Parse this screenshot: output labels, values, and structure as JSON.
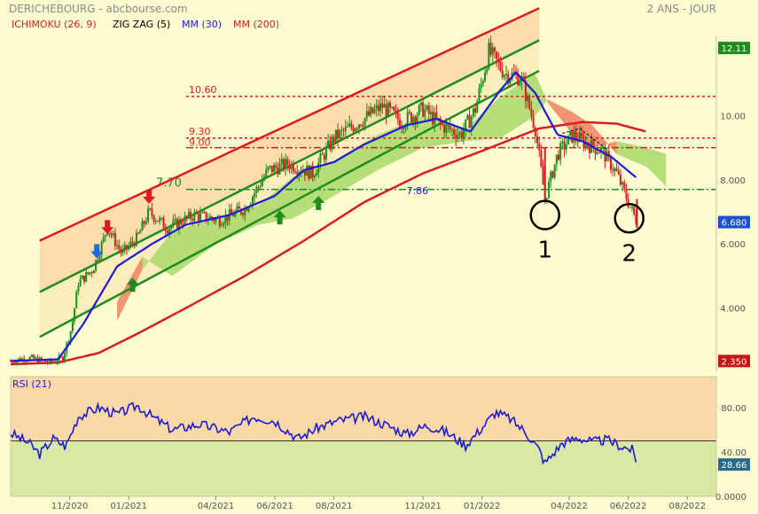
{
  "header": {
    "title": "DERICHEBOURG - abcbourse.com",
    "period": "2 ANS - JOUR",
    "legend": [
      {
        "label": "ICHIMOKU (26, 9)",
        "color": "#d81e1e"
      },
      {
        "label": "ZIG ZAG (5)",
        "color": "#000000"
      },
      {
        "label": "MM (30)",
        "color": "#1a1ad8"
      },
      {
        "label": "MM (200)",
        "color": "#d81e1e"
      }
    ]
  },
  "colors": {
    "background": "#fdfbd0",
    "rsi_overbought_band": "#fbd9a6",
    "rsi_oversold_band": "#d9e9a4",
    "candle_up": "#1a8f1a",
    "candle_down": "#d81e1e",
    "mm30": "#1a1ad8",
    "mm200": "#d81e1e",
    "channel_upper": "#e01a1a",
    "channel_lower": "#1f8c1f",
    "cloud_bull": "#a8d86a",
    "cloud_bear": "#f08060",
    "price_tag_green": "#1f8c1f",
    "price_tag_blue": "#1a4fd8",
    "price_tag_red": "#c81414",
    "price_tag_teal": "#2a6a8a"
  },
  "chart_data": [
    {
      "type": "candlestick",
      "title": "DERICHEBOURG",
      "y_axis": {
        "ticks": [
          "4.000",
          "6.000",
          "8.000",
          "10.00"
        ],
        "ylim": [
          2.0,
          12.5
        ]
      },
      "x_axis": {
        "ticks": [
          "11/2020",
          "01/2021",
          "04/2021",
          "06/2021",
          "08/2021",
          "11/2021",
          "01/2022",
          "04/2022",
          "06/2022",
          "08/2022"
        ],
        "xlim": [
          "2020-09-01",
          "2022-08-31"
        ]
      },
      "price_tags": [
        {
          "value": 12.11,
          "label": "12.11",
          "color": "#1f8c1f"
        },
        {
          "value": 6.68,
          "label": "6.680",
          "color": "#1a4fd8"
        },
        {
          "value": 2.35,
          "label": "2.350",
          "color": "#c81414"
        }
      ],
      "horizontal_levels": [
        {
          "value": 10.6,
          "label": "10.60",
          "style": "dotted",
          "color": "#d81e1e"
        },
        {
          "value": 9.3,
          "label": "9.30",
          "style": "dotted",
          "color": "#d81e1e"
        },
        {
          "value": 9.0,
          "label": "9.00",
          "style": "dashdot",
          "color": "#d81e1e"
        },
        {
          "value": 7.7,
          "label": "7.70",
          "style": "dashdot",
          "color": "#1f8c1f"
        }
      ],
      "annotations": [
        {
          "label": "7.86",
          "date": "2021-10-15",
          "value": 7.55,
          "color": "#1a1ad8"
        },
        {
          "label": "1",
          "date": "2022-03-07",
          "value": 6.9,
          "type": "circle"
        },
        {
          "label": "2",
          "date": "2022-06-02",
          "value": 6.8,
          "type": "circle"
        }
      ],
      "arrows": [
        {
          "date": "2020-12-10",
          "value": 6.3,
          "direction": "down",
          "color": "#e01a1a"
        },
        {
          "date": "2021-01-22",
          "value": 7.25,
          "direction": "down",
          "color": "#e01a1a"
        },
        {
          "date": "2020-11-29",
          "value": 5.55,
          "direction": "down",
          "color": "#1a6ae0"
        },
        {
          "date": "2021-01-05",
          "value": 4.95,
          "direction": "up",
          "color": "#1f8c1f"
        },
        {
          "date": "2021-06-06",
          "value": 7.05,
          "direction": "up",
          "color": "#1f8c1f"
        },
        {
          "date": "2021-07-16",
          "value": 7.5,
          "direction": "up",
          "color": "#1f8c1f"
        }
      ],
      "channel": {
        "upper": [
          {
            "date": "2020-10-01",
            "value": 6.1
          },
          {
            "date": "2022-03-01",
            "value": 13.35
          }
        ],
        "middle": [
          {
            "date": "2020-10-01",
            "value": 4.5
          },
          {
            "date": "2022-03-01",
            "value": 12.35
          }
        ],
        "lower": [
          {
            "date": "2020-10-01",
            "value": 3.1
          },
          {
            "date": "2022-03-01",
            "value": 11.4
          }
        ]
      },
      "price_anchors": [
        {
          "date": "2020-09-01",
          "value": 2.35
        },
        {
          "date": "2020-09-20",
          "value": 2.45
        },
        {
          "date": "2020-10-10",
          "value": 2.3
        },
        {
          "date": "2020-10-25",
          "value": 2.45
        },
        {
          "date": "2020-11-03",
          "value": 3.4
        },
        {
          "date": "2020-11-10",
          "value": 4.8
        },
        {
          "date": "2020-11-25",
          "value": 5.2
        },
        {
          "date": "2020-12-10",
          "value": 6.5
        },
        {
          "date": "2020-12-25",
          "value": 5.7
        },
        {
          "date": "2021-01-10",
          "value": 6.2
        },
        {
          "date": "2021-01-22",
          "value": 7.0
        },
        {
          "date": "2021-02-10",
          "value": 6.5
        },
        {
          "date": "2021-03-10",
          "value": 6.9
        },
        {
          "date": "2021-04-05",
          "value": 6.75
        },
        {
          "date": "2021-05-01",
          "value": 7.1
        },
        {
          "date": "2021-05-25",
          "value": 8.3
        },
        {
          "date": "2021-06-15",
          "value": 8.5
        },
        {
          "date": "2021-07-10",
          "value": 8.2
        },
        {
          "date": "2021-08-01",
          "value": 9.3
        },
        {
          "date": "2021-09-01",
          "value": 9.9
        },
        {
          "date": "2021-09-20",
          "value": 10.3
        },
        {
          "date": "2021-10-10",
          "value": 9.8
        },
        {
          "date": "2021-11-01",
          "value": 10.2
        },
        {
          "date": "2021-11-20",
          "value": 9.7
        },
        {
          "date": "2021-12-10",
          "value": 9.4
        },
        {
          "date": "2021-12-25",
          "value": 10.2
        },
        {
          "date": "2022-01-08",
          "value": 12.0
        },
        {
          "date": "2022-01-25",
          "value": 11.3
        },
        {
          "date": "2022-02-10",
          "value": 11.2
        },
        {
          "date": "2022-02-25",
          "value": 9.6
        },
        {
          "date": "2022-03-07",
          "value": 7.4
        },
        {
          "date": "2022-03-20",
          "value": 8.8
        },
        {
          "date": "2022-04-05",
          "value": 9.4
        },
        {
          "date": "2022-04-20",
          "value": 9.1
        },
        {
          "date": "2022-05-05",
          "value": 8.9
        },
        {
          "date": "2022-05-20",
          "value": 8.2
        },
        {
          "date": "2022-06-01",
          "value": 7.3
        },
        {
          "date": "2022-06-10",
          "value": 6.68
        }
      ],
      "mm30_anchors": [
        {
          "date": "2020-09-01",
          "value": 2.35
        },
        {
          "date": "2020-10-20",
          "value": 2.4
        },
        {
          "date": "2020-11-15",
          "value": 3.5
        },
        {
          "date": "2020-12-20",
          "value": 5.3
        },
        {
          "date": "2021-01-25",
          "value": 6.0
        },
        {
          "date": "2021-03-01",
          "value": 6.6
        },
        {
          "date": "2021-04-15",
          "value": 6.9
        },
        {
          "date": "2021-06-01",
          "value": 7.5
        },
        {
          "date": "2021-07-01",
          "value": 8.3
        },
        {
          "date": "2021-08-01",
          "value": 8.55
        },
        {
          "date": "2021-09-01",
          "value": 9.1
        },
        {
          "date": "2021-10-15",
          "value": 9.7
        },
        {
          "date": "2021-11-15",
          "value": 9.9
        },
        {
          "date": "2021-12-20",
          "value": 9.5
        },
        {
          "date": "2022-01-20",
          "value": 10.8
        },
        {
          "date": "2022-02-05",
          "value": 11.35
        },
        {
          "date": "2022-02-25",
          "value": 10.7
        },
        {
          "date": "2022-03-20",
          "value": 9.4
        },
        {
          "date": "2022-04-15",
          "value": 9.2
        },
        {
          "date": "2022-05-15",
          "value": 8.7
        },
        {
          "date": "2022-06-10",
          "value": 8.05
        }
      ],
      "mm200_anchors": [
        {
          "date": "2020-09-01",
          "value": 2.25
        },
        {
          "date": "2020-10-20",
          "value": 2.3
        },
        {
          "date": "2020-12-01",
          "value": 2.6
        },
        {
          "date": "2021-01-10",
          "value": 3.2
        },
        {
          "date": "2021-03-01",
          "value": 4.0
        },
        {
          "date": "2021-05-01",
          "value": 5.0
        },
        {
          "date": "2021-07-01",
          "value": 6.1
        },
        {
          "date": "2021-09-01",
          "value": 7.3
        },
        {
          "date": "2021-11-01",
          "value": 8.2
        },
        {
          "date": "2022-01-01",
          "value": 8.9
        },
        {
          "date": "2022-03-01",
          "value": 9.6
        },
        {
          "date": "2022-04-15",
          "value": 9.8
        },
        {
          "date": "2022-05-20",
          "value": 9.75
        },
        {
          "date": "2022-06-20",
          "value": 9.5
        }
      ],
      "cloud": [
        {
          "date": "2020-12-20",
          "a": 3.6,
          "b": 4.2
        },
        {
          "date": "2021-01-15",
          "a": 5.2,
          "b": 5.6
        },
        {
          "date": "2021-02-15",
          "a": 6.4,
          "b": 5.0
        },
        {
          "date": "2021-04-01",
          "a": 6.8,
          "b": 6.0
        },
        {
          "date": "2021-05-15",
          "a": 7.2,
          "b": 6.6
        },
        {
          "date": "2021-06-20",
          "a": 8.1,
          "b": 6.8
        },
        {
          "date": "2021-08-01",
          "a": 8.6,
          "b": 7.5
        },
        {
          "date": "2021-09-15",
          "a": 9.4,
          "b": 8.3
        },
        {
          "date": "2021-11-01",
          "a": 10.0,
          "b": 9.0
        },
        {
          "date": "2021-12-15",
          "a": 9.6,
          "b": 9.2
        },
        {
          "date": "2022-01-20",
          "a": 10.6,
          "b": 9.3
        },
        {
          "date": "2022-02-25",
          "a": 11.3,
          "b": 10.0
        },
        {
          "date": "2022-03-10",
          "a": 10.4,
          "b": 10.5
        },
        {
          "date": "2022-04-05",
          "a": 9.4,
          "b": 10.1
        },
        {
          "date": "2022-04-25",
          "a": 9.0,
          "b": 9.7
        },
        {
          "date": "2022-05-20",
          "a": 9.2,
          "b": 8.8
        },
        {
          "date": "2022-06-20",
          "a": 9.0,
          "b": 8.4
        },
        {
          "date": "2022-07-10",
          "a": 8.8,
          "b": 7.8
        }
      ]
    },
    {
      "type": "line",
      "title": "RSI (21)",
      "y_axis": {
        "ticks": [
          "0.0000",
          "40.00",
          "80.00"
        ],
        "ylim": [
          0,
          108
        ]
      },
      "x_axis": {
        "ticks": [
          "11/2020",
          "01/2021",
          "04/2021",
          "06/2021",
          "08/2021",
          "11/2021",
          "01/2022",
          "04/2022",
          "06/2022",
          "08/2022"
        ]
      },
      "bands": [
        {
          "from": 50,
          "to": 108,
          "label": "overbought"
        },
        {
          "from": 0,
          "to": 50,
          "label": "oversold"
        }
      ],
      "reference_line": 50,
      "last_value": {
        "value": 28.66,
        "label": "28.66"
      },
      "rsi_anchors": [
        {
          "date": "2020-09-01",
          "value": 57
        },
        {
          "date": "2020-09-20",
          "value": 48
        },
        {
          "date": "2020-10-01",
          "value": 38
        },
        {
          "date": "2020-10-15",
          "value": 52
        },
        {
          "date": "2020-10-28",
          "value": 45
        },
        {
          "date": "2020-11-10",
          "value": 72
        },
        {
          "date": "2020-12-01",
          "value": 80
        },
        {
          "date": "2020-12-20",
          "value": 74
        },
        {
          "date": "2021-01-10",
          "value": 82
        },
        {
          "date": "2021-01-25",
          "value": 72
        },
        {
          "date": "2021-02-15",
          "value": 60
        },
        {
          "date": "2021-03-15",
          "value": 65
        },
        {
          "date": "2021-04-15",
          "value": 58
        },
        {
          "date": "2021-05-10",
          "value": 72
        },
        {
          "date": "2021-06-01",
          "value": 68
        },
        {
          "date": "2021-06-25",
          "value": 52
        },
        {
          "date": "2021-07-15",
          "value": 62
        },
        {
          "date": "2021-08-05",
          "value": 68
        },
        {
          "date": "2021-09-01",
          "value": 72
        },
        {
          "date": "2021-09-25",
          "value": 64
        },
        {
          "date": "2021-10-15",
          "value": 56
        },
        {
          "date": "2021-11-05",
          "value": 64
        },
        {
          "date": "2021-11-25",
          "value": 58
        },
        {
          "date": "2021-12-15",
          "value": 46
        },
        {
          "date": "2022-01-01",
          "value": 62
        },
        {
          "date": "2022-01-15",
          "value": 76
        },
        {
          "date": "2022-01-30",
          "value": 70
        },
        {
          "date": "2022-02-15",
          "value": 58
        },
        {
          "date": "2022-03-01",
          "value": 42
        },
        {
          "date": "2022-03-07",
          "value": 30
        },
        {
          "date": "2022-03-25",
          "value": 48
        },
        {
          "date": "2022-04-10",
          "value": 53
        },
        {
          "date": "2022-04-25",
          "value": 49
        },
        {
          "date": "2022-05-10",
          "value": 51
        },
        {
          "date": "2022-05-25",
          "value": 45
        },
        {
          "date": "2022-06-05",
          "value": 42
        },
        {
          "date": "2022-06-10",
          "value": 28.66
        }
      ]
    }
  ]
}
